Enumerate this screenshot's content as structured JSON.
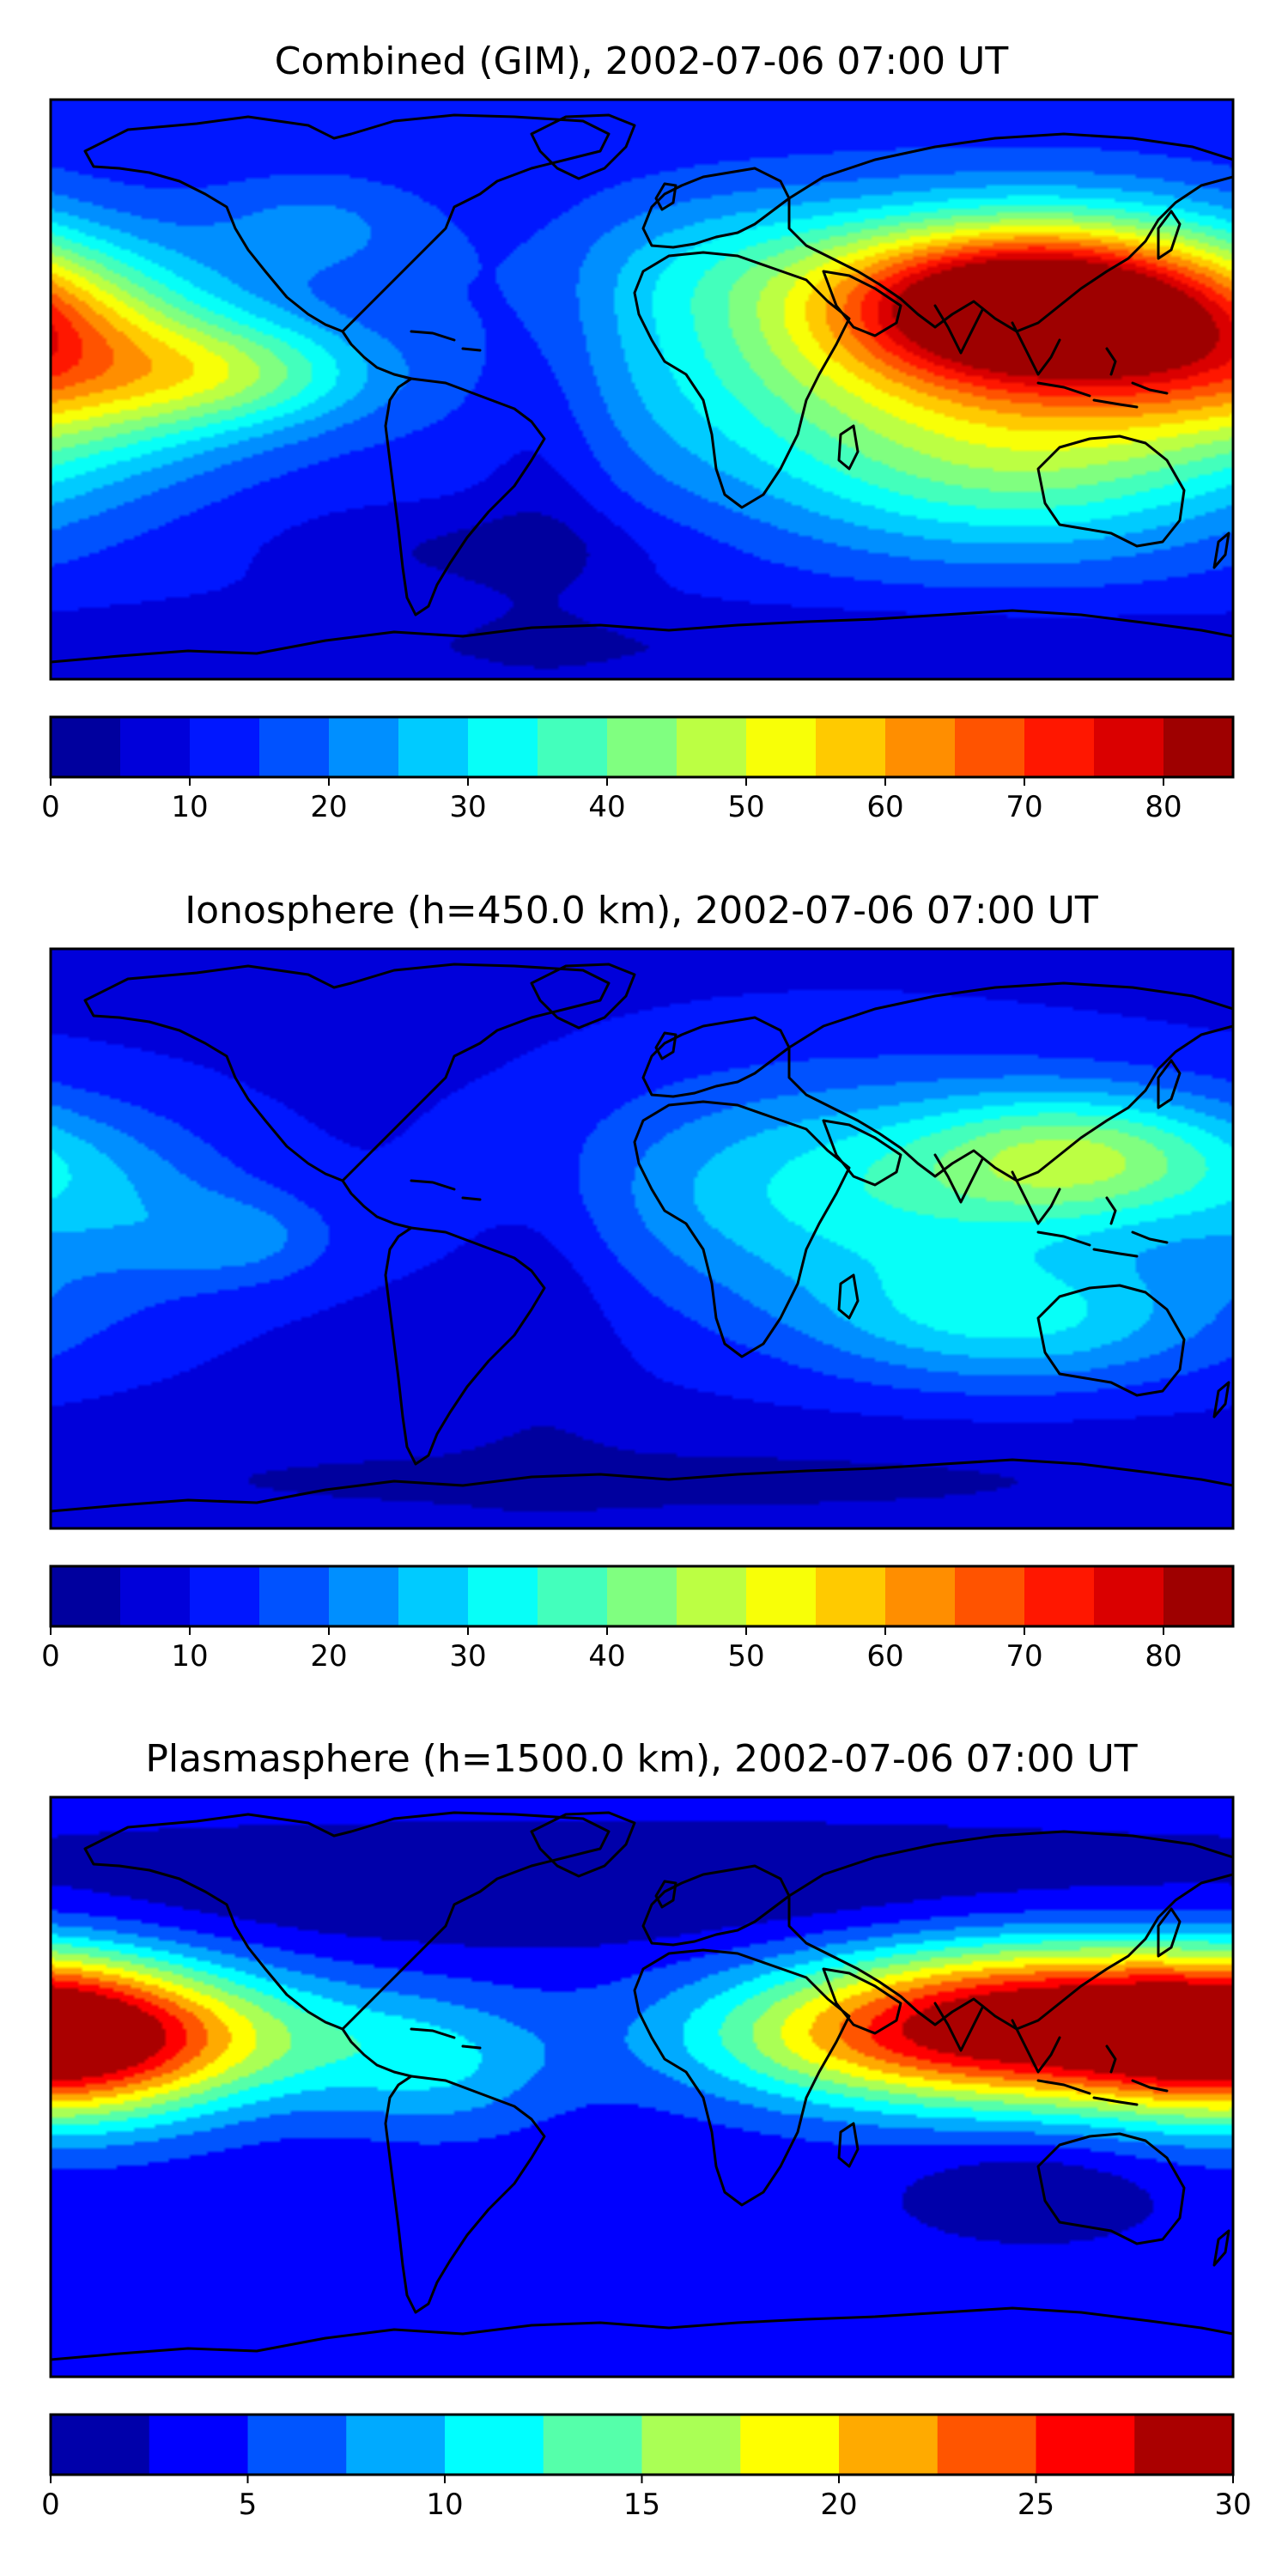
{
  "figure": {
    "panels": [
      {
        "title": "Combined (GIM), 2002-07-06 07:00 UT",
        "colorbar": {
          "min": 0,
          "max": 85,
          "step": 5,
          "tick_values": [
            0,
            10,
            20,
            30,
            40,
            50,
            60,
            70,
            80
          ],
          "tick_labels": [
            "0",
            "10",
            "20",
            "30",
            "40",
            "50",
            "60",
            "70",
            "80"
          ]
        },
        "field": {
          "background": 11,
          "blobs": [
            {
              "lon": 135,
              "lat": 25,
              "sx": 45,
              "sy": 20,
              "a": 62
            },
            {
              "lon": 105,
              "lat": 27,
              "sx": 35,
              "sy": 15,
              "a": 25
            },
            {
              "lon": 60,
              "lat": 10,
              "sx": 60,
              "sy": 30,
              "a": 25
            },
            {
              "lon": 120,
              "lat": -25,
              "sx": 50,
              "sy": 20,
              "a": 22
            },
            {
              "lon": -170,
              "lat": 5,
              "sx": 40,
              "sy": 20,
              "a": 28
            },
            {
              "lon": -120,
              "lat": 5,
              "sx": 30,
              "sy": 12,
              "a": 20
            },
            {
              "lon": -100,
              "lat": 50,
              "sx": 25,
              "sy": 12,
              "a": 10
            },
            {
              "lon": 30,
              "lat": 40,
              "sx": 40,
              "sy": 15,
              "a": 8
            },
            {
              "lon": -30,
              "lat": -15,
              "sx": 15,
              "sy": 40,
              "a": -6
            },
            {
              "lon": -50,
              "lat": -50,
              "sx": 40,
              "sy": 10,
              "a": -7
            },
            {
              "lon": 0,
              "lat": -80,
              "sx": 180,
              "sy": 10,
              "a": -6
            }
          ]
        }
      },
      {
        "title": "Ionosphere  (h=450.0 km), 2002-07-06 07:00 UT",
        "colorbar": {
          "min": 0,
          "max": 85,
          "step": 5,
          "tick_values": [
            0,
            10,
            20,
            30,
            40,
            50,
            60,
            70,
            80
          ],
          "tick_labels": [
            "0",
            "10",
            "20",
            "30",
            "40",
            "50",
            "60",
            "70",
            "80"
          ]
        },
        "field": {
          "background": 9,
          "blobs": [
            {
              "lon": 135,
              "lat": 25,
              "sx": 35,
              "sy": 15,
              "a": 30
            },
            {
              "lon": 60,
              "lat": 15,
              "sx": 55,
              "sy": 25,
              "a": 22
            },
            {
              "lon": 115,
              "lat": -25,
              "sx": 45,
              "sy": 15,
              "a": 20
            },
            {
              "lon": -160,
              "lat": 10,
              "sx": 30,
              "sy": 20,
              "a": 12
            },
            {
              "lon": -120,
              "lat": 0,
              "sx": 20,
              "sy": 10,
              "a": 10
            },
            {
              "lon": -30,
              "lat": -20,
              "sx": 15,
              "sy": 30,
              "a": -5
            },
            {
              "lon": 0,
              "lat": -75,
              "sx": 180,
              "sy": 12,
              "a": -5
            }
          ]
        }
      },
      {
        "title": "Plasmasphere (h=1500.0 km), 2002-07-06 07:00 UT",
        "colorbar": {
          "min": 0,
          "max": 30,
          "step": 2.5,
          "tick_values": [
            0,
            5,
            10,
            15,
            20,
            25,
            30
          ],
          "tick_labels": [
            "0",
            "5",
            "10",
            "15",
            "20",
            "25",
            "30"
          ]
        },
        "field": {
          "background": 3,
          "blobs": [
            {
              "lon": 120,
              "lat": 20,
              "sx": 50,
              "sy": 18,
              "a": 24
            },
            {
              "lon": -175,
              "lat": 15,
              "sx": 35,
              "sy": 18,
              "a": 20
            },
            {
              "lon": -120,
              "lat": 15,
              "sx": 45,
              "sy": 15,
              "a": 8
            },
            {
              "lon": 60,
              "lat": 15,
              "sx": 45,
              "sy": 15,
              "a": 8
            },
            {
              "lon": -60,
              "lat": 5,
              "sx": 25,
              "sy": 15,
              "a": 5
            },
            {
              "lon": 120,
              "lat": -30,
              "sx": 25,
              "sy": 10,
              "a": -3
            },
            {
              "lon": 0,
              "lat": 60,
              "sx": 180,
              "sy": 12,
              "a": -3
            }
          ]
        }
      }
    ],
    "colormap": "jet"
  }
}
